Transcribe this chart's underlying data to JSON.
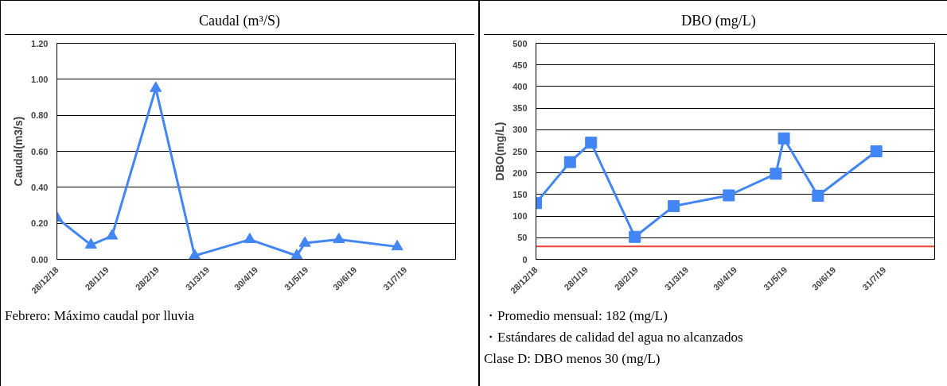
{
  "chart_data": [
    {
      "type": "line",
      "title": "Caudal (m³/S)",
      "ylabel": "Caudal(m3/s)",
      "x": [
        "2018-12-28",
        "2019-01-18",
        "2019-01-31",
        "2019-02-27",
        "2019-03-23",
        "2019-04-26",
        "2019-05-25",
        "2019-05-30",
        "2019-06-20",
        "2019-07-26"
      ],
      "series": [
        {
          "color": "#4285f4",
          "values": [
            0.23,
            0.08,
            0.13,
            0.95,
            0.02,
            0.11,
            0.02,
            0.09,
            0.11,
            0.07
          ]
        }
      ],
      "xlim": [
        "2018-12-28",
        "2019-08-31"
      ],
      "xticks": [
        {
          "value": "2018-12-28",
          "label": "28/12/18"
        },
        {
          "value": "2019-01-28",
          "label": "28/1/19"
        },
        {
          "value": "2019-02-28",
          "label": "28/2/19"
        },
        {
          "value": "2019-03-31",
          "label": "31/3/19"
        },
        {
          "value": "2019-04-30",
          "label": "30/4/19"
        },
        {
          "value": "2019-05-31",
          "label": "31/5/19"
        },
        {
          "value": "2019-06-30",
          "label": "30/6/19"
        },
        {
          "value": "2019-07-31",
          "label": "31/7/19"
        }
      ],
      "ylim": [
        0,
        1.2
      ],
      "yticks": [
        {
          "value": 0,
          "label": "0.00"
        },
        {
          "value": 0.2,
          "label": "0.20"
        },
        {
          "value": 0.4,
          "label": "0.40"
        },
        {
          "value": 0.6,
          "label": "0.60"
        },
        {
          "value": 0.8,
          "label": "0.80"
        },
        {
          "value": 1.0,
          "label": "1.00"
        },
        {
          "value": 1.2,
          "label": "1.20"
        }
      ],
      "grid": "y",
      "marker": "triangle",
      "annotations": [
        "Febrero: Máximo caudal por lluvia"
      ]
    },
    {
      "type": "line",
      "title": "DBO (mg/L)",
      "ylabel": "DBO(mg/L)",
      "x": [
        "2018-12-28",
        "2019-01-18",
        "2019-01-31",
        "2019-02-27",
        "2019-03-23",
        "2019-04-26",
        "2019-05-25",
        "2019-05-30",
        "2019-06-20",
        "2019-07-26"
      ],
      "series": [
        {
          "color": "#4285f4",
          "values": [
            130,
            225,
            270,
            52,
            123,
            148,
            198,
            280,
            147,
            250
          ]
        }
      ],
      "xlim": [
        "2018-12-28",
        "2019-08-31"
      ],
      "xticks": [
        {
          "value": "2018-12-28",
          "label": "28/12/18"
        },
        {
          "value": "2019-01-28",
          "label": "28/1/19"
        },
        {
          "value": "2019-02-28",
          "label": "28/2/19"
        },
        {
          "value": "2019-03-31",
          "label": "31/3/19"
        },
        {
          "value": "2019-04-30",
          "label": "30/4/19"
        },
        {
          "value": "2019-05-31",
          "label": "31/5/19"
        },
        {
          "value": "2019-06-30",
          "label": "30/6/19"
        },
        {
          "value": "2019-07-31",
          "label": "31/7/19"
        }
      ],
      "ylim": [
        0,
        500
      ],
      "yticks": [
        0,
        50,
        100,
        150,
        200,
        250,
        300,
        350,
        400,
        450,
        500
      ],
      "ref_lines": [
        {
          "axis": "y",
          "value": 30,
          "color": "#ea4335"
        }
      ],
      "grid": "y",
      "marker": "square",
      "annotations": [
        "・Promedio mensual: 182 (mg/L)",
        "・Estándares de calidad del agua no alcanzados",
        "Clase D: DBO menos 30 (mg/L)"
      ]
    }
  ]
}
